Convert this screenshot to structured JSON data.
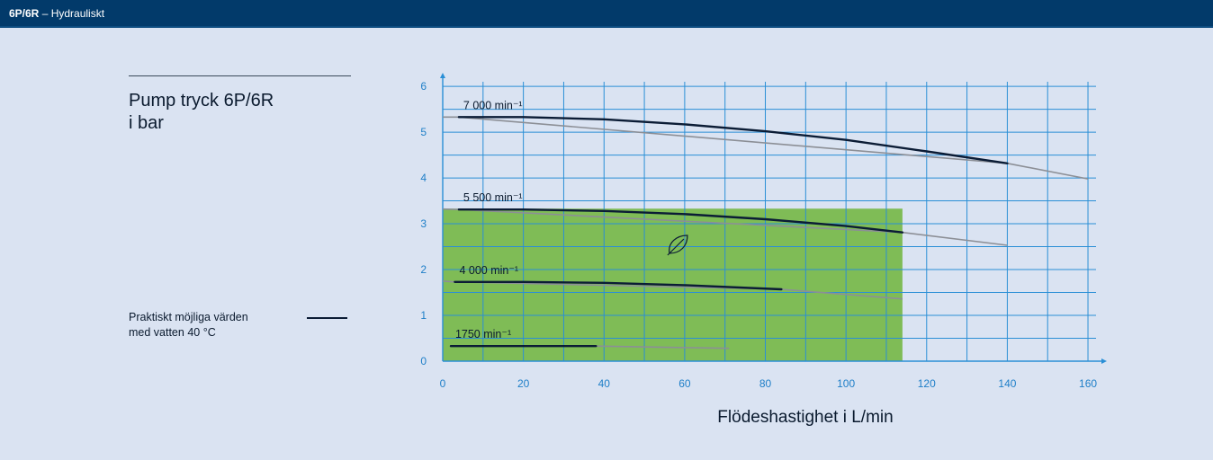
{
  "header": {
    "model": "6P/6R",
    "separator": " – ",
    "section": "Hydrauliskt"
  },
  "chart_title": {
    "line1": "Pump tryck 6P/6R",
    "line2": "i bar"
  },
  "legend": {
    "line1": "Praktiskt möjliga värden",
    "line2": "med vatten 40 °C"
  },
  "colors": {
    "background": "#dae3f2",
    "header_bg": "#023a6a",
    "grid": "#2a8fd6",
    "practical_curve": "#0b1c35",
    "extended_curve": "#8c8f96",
    "eco_zone": "#7fbc56"
  },
  "icons": {
    "eco_zone": "leaf-icon"
  },
  "chart_data": {
    "type": "line",
    "xlabel": "Flödeshastighet i L/min",
    "ylabel": "",
    "xlim": [
      0,
      162
    ],
    "ylim": [
      0,
      6.1
    ],
    "x_ticks": [
      "0",
      "20",
      "40",
      "60",
      "80",
      "100",
      "120",
      "140",
      "160"
    ],
    "y_ticks": [
      "0",
      "1",
      "2",
      "3",
      "4",
      "5",
      "6"
    ],
    "grid": true,
    "eco_zone": {
      "x": [
        0,
        114
      ],
      "y_top": 3.33
    },
    "series": [
      {
        "name": "7 000 min⁻¹",
        "practical": [
          [
            4,
            5.33
          ],
          [
            20,
            5.33
          ],
          [
            40,
            5.28
          ],
          [
            60,
            5.17
          ],
          [
            80,
            5.02
          ],
          [
            100,
            4.83
          ],
          [
            120,
            4.58
          ],
          [
            140,
            4.32
          ]
        ],
        "extended": [
          [
            0,
            5.33
          ],
          [
            4,
            5.33
          ],
          [
            140,
            4.32
          ],
          [
            160,
            3.98
          ]
        ]
      },
      {
        "name": "5 500 min⁻¹",
        "practical": [
          [
            4,
            3.31
          ],
          [
            20,
            3.31
          ],
          [
            40,
            3.28
          ],
          [
            60,
            3.21
          ],
          [
            80,
            3.1
          ],
          [
            100,
            2.95
          ],
          [
            114,
            2.81
          ]
        ],
        "extended": [
          [
            0,
            3.32
          ],
          [
            4,
            3.31
          ],
          [
            114,
            2.81
          ],
          [
            140,
            2.53
          ]
        ]
      },
      {
        "name": "4 000 min⁻¹",
        "practical": [
          [
            3,
            1.73
          ],
          [
            20,
            1.73
          ],
          [
            40,
            1.71
          ],
          [
            60,
            1.66
          ],
          [
            84,
            1.57
          ]
        ],
        "extended": [
          [
            0,
            1.75
          ],
          [
            3,
            1.73
          ],
          [
            84,
            1.57
          ],
          [
            114,
            1.36
          ]
        ]
      },
      {
        "name": "1750 min⁻¹",
        "practical": [
          [
            2,
            0.33
          ],
          [
            38,
            0.33
          ]
        ],
        "extended": [
          [
            2,
            0.33
          ],
          [
            38,
            0.33
          ],
          [
            71,
            0.28
          ]
        ]
      }
    ]
  }
}
